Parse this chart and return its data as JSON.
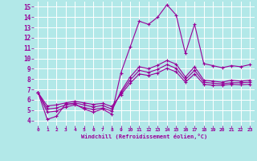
{
  "xlabel": "Windchill (Refroidissement éolien,°C)",
  "background_color": "#b2e8e8",
  "grid_color": "#ffffff",
  "line_color": "#990099",
  "x_hours": [
    0,
    1,
    2,
    3,
    4,
    5,
    6,
    7,
    8,
    9,
    10,
    11,
    12,
    13,
    14,
    15,
    16,
    17,
    18,
    19,
    20,
    21,
    22,
    23
  ],
  "temp_line": [
    6.7,
    4.1,
    4.4,
    5.6,
    5.6,
    5.1,
    4.8,
    5.1,
    4.6,
    8.6,
    11.1,
    13.6,
    13.3,
    14.0,
    15.2,
    14.2,
    10.5,
    13.3,
    9.5,
    9.3,
    9.1,
    9.3,
    9.2,
    9.4
  ],
  "line2": [
    6.7,
    4.8,
    4.9,
    5.3,
    5.5,
    5.25,
    5.05,
    5.2,
    4.9,
    6.8,
    8.2,
    9.2,
    9.0,
    9.35,
    9.8,
    9.45,
    8.2,
    9.2,
    7.9,
    7.8,
    7.7,
    7.9,
    7.8,
    7.9
  ],
  "line3": [
    6.7,
    5.1,
    5.2,
    5.5,
    5.7,
    5.5,
    5.3,
    5.45,
    5.1,
    6.65,
    7.9,
    8.85,
    8.65,
    8.95,
    9.4,
    9.05,
    7.95,
    8.85,
    7.7,
    7.6,
    7.55,
    7.65,
    7.65,
    7.7
  ],
  "line4": [
    6.7,
    5.4,
    5.5,
    5.7,
    5.85,
    5.7,
    5.55,
    5.65,
    5.35,
    6.5,
    7.6,
    8.5,
    8.35,
    8.6,
    9.05,
    8.7,
    7.7,
    8.5,
    7.5,
    7.4,
    7.4,
    7.5,
    7.45,
    7.5
  ],
  "xlim": [
    -0.5,
    23.5
  ],
  "ylim": [
    3.5,
    15.5
  ],
  "xticks": [
    0,
    1,
    2,
    3,
    4,
    5,
    6,
    7,
    8,
    9,
    10,
    11,
    12,
    13,
    14,
    15,
    16,
    17,
    18,
    19,
    20,
    21,
    22,
    23
  ],
  "yticks": [
    4,
    5,
    6,
    7,
    8,
    9,
    10,
    11,
    12,
    13,
    14,
    15
  ],
  "marker": "+"
}
